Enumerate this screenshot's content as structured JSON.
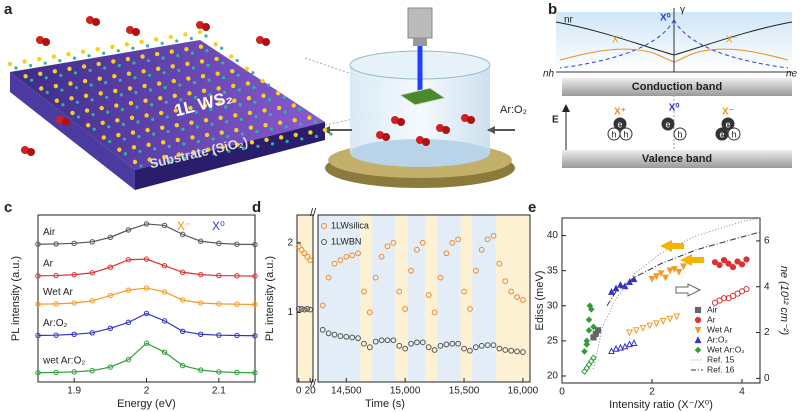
{
  "panel_a": {
    "label": "a",
    "layer": "1L WS₂",
    "substrate": "Substrate (SiO₂)",
    "gas": "Ar:O₂"
  },
  "panel_b": {
    "label": "b",
    "nr": "nr",
    "gamma": "γ",
    "x0_top": "X⁰",
    "xplus_top": "X⁺",
    "xminus_top": "X⁻",
    "nh": "nh",
    "ne": "ne",
    "conduction": "Conduction band",
    "energy": "E",
    "xplus": "X⁺",
    "x0": "X⁰",
    "xminus": "X⁻",
    "valence": "Valence band",
    "particles": [
      [
        "e",
        "h",
        "h"
      ],
      [
        "e",
        "h"
      ],
      [
        "e",
        "e",
        "h"
      ]
    ]
  },
  "chart_data": [
    {
      "type": "line",
      "label": "c",
      "xlabel": "Energy (eV)",
      "ylabel": "PL intensity (a.u.)",
      "xlim": [
        1.85,
        2.15
      ],
      "xticks": [
        1.9,
        2.0,
        2.1
      ],
      "ylim": [
        0,
        5.6
      ],
      "annotations": [
        {
          "text": "X⁻",
          "color": "#f0901e"
        },
        {
          "text": "X⁰",
          "color": "#2d3bd6"
        }
      ],
      "x": [
        1.85,
        1.875,
        1.9,
        1.925,
        1.95,
        1.975,
        2.0,
        2.025,
        2.05,
        2.075,
        2.1,
        2.125,
        2.15
      ],
      "series": [
        {
          "name": "Air",
          "color": "#555555",
          "values": [
            4.62,
            4.63,
            4.65,
            4.7,
            4.85,
            5.1,
            5.3,
            5.25,
            4.95,
            4.72,
            4.65,
            4.62,
            4.61
          ]
        },
        {
          "name": "Ar",
          "color": "#e03030",
          "values": [
            3.56,
            3.57,
            3.6,
            3.66,
            3.85,
            4.1,
            4.12,
            3.9,
            3.68,
            3.6,
            3.57,
            3.56,
            3.55
          ]
        },
        {
          "name": "Wet Ar",
          "color": "#f59a23",
          "values": [
            2.61,
            2.62,
            2.65,
            2.72,
            2.9,
            3.08,
            3.15,
            3.02,
            2.75,
            2.65,
            2.62,
            2.61,
            2.6
          ]
        },
        {
          "name": "Ar:O₂",
          "color": "#3333cc",
          "values": [
            1.56,
            1.57,
            1.6,
            1.65,
            1.8,
            2.0,
            2.3,
            2.05,
            1.7,
            1.6,
            1.57,
            1.56,
            1.55
          ]
        },
        {
          "name": "wet Ar:O₂",
          "color": "#2e9e3a",
          "values": [
            0.31,
            0.32,
            0.34,
            0.38,
            0.5,
            0.75,
            1.3,
            1.0,
            0.55,
            0.4,
            0.34,
            0.32,
            0.31
          ]
        }
      ]
    },
    {
      "type": "scatter",
      "xlim": [
        -3,
        25
      ],
      "xticks": [
        0,
        20
      ],
      "ylabel": "PL intensity (a.u.)",
      "ylim": [
        0,
        2.4
      ],
      "yticks": [
        1,
        2
      ],
      "regions": [
        {
          "from": -3,
          "to": 25,
          "color": "#fdf1d3"
        }
      ],
      "x": [
        0,
        5,
        10,
        15,
        20
      ],
      "series": [
        {
          "name": "1LWsilica",
          "color": "#f08a2c",
          "values": [
            1.95,
            1.9,
            1.85,
            1.8,
            1.75
          ]
        },
        {
          "name": "1LWBN",
          "color": "#555555",
          "values": [
            1.05,
            1.05,
            1.04,
            1.05,
            1.04
          ]
        }
      ]
    },
    {
      "type": "scatter",
      "label": "d",
      "xlabel": "Time (s)",
      "xlim": [
        14260,
        16060
      ],
      "xticks": [
        {
          "value": 14500,
          "label": "14,500"
        },
        {
          "value": 15000,
          "label": "15,000"
        },
        {
          "value": 15500,
          "label": "15,500"
        },
        {
          "value": 16000,
          "label": "16,000"
        }
      ],
      "ylim": [
        0,
        2.4
      ],
      "regions": [
        {
          "from": 14260,
          "to": 14620,
          "color": "#e3edf7"
        },
        {
          "from": 14620,
          "to": 14720,
          "color": "#fdf1d3"
        },
        {
          "from": 14720,
          "to": 14920,
          "color": "#e3edf7"
        },
        {
          "from": 14920,
          "to": 15020,
          "color": "#fdf1d3"
        },
        {
          "from": 15020,
          "to": 15170,
          "color": "#e3edf7"
        },
        {
          "from": 15170,
          "to": 15270,
          "color": "#fdf1d3"
        },
        {
          "from": 15270,
          "to": 15470,
          "color": "#e3edf7"
        },
        {
          "from": 15470,
          "to": 15570,
          "color": "#fdf1d3"
        },
        {
          "from": 15570,
          "to": 15770,
          "color": "#e3edf7"
        },
        {
          "from": 15770,
          "to": 16060,
          "color": "#fdf1d3"
        }
      ],
      "x": [
        14300,
        14350,
        14400,
        14450,
        14500,
        14550,
        14600,
        14650,
        14700,
        14750,
        14800,
        14850,
        14900,
        14950,
        15000,
        15050,
        15100,
        15150,
        15200,
        15250,
        15300,
        15350,
        15400,
        15450,
        15500,
        15550,
        15600,
        15650,
        15700,
        15750,
        15800,
        15850,
        15900,
        15950,
        16000
      ],
      "series": [
        {
          "name": "1LWsilica",
          "color": "#f08a2c",
          "values": [
            1.1,
            1.5,
            1.7,
            1.75,
            1.8,
            1.82,
            1.85,
            1.3,
            1.0,
            1.5,
            1.8,
            1.95,
            2.0,
            1.3,
            1.05,
            1.6,
            1.9,
            2.0,
            1.25,
            1.0,
            1.5,
            1.85,
            2.0,
            2.05,
            1.3,
            1.05,
            1.6,
            1.9,
            2.05,
            2.1,
            1.7,
            1.45,
            1.3,
            1.22,
            1.18
          ]
        },
        {
          "name": "1LWBN",
          "color": "#555555",
          "values": [
            0.75,
            0.7,
            0.68,
            0.66,
            0.65,
            0.64,
            0.63,
            0.55,
            0.5,
            0.58,
            0.6,
            0.6,
            0.6,
            0.52,
            0.48,
            0.55,
            0.57,
            0.57,
            0.5,
            0.46,
            0.52,
            0.54,
            0.55,
            0.55,
            0.48,
            0.45,
            0.5,
            0.52,
            0.53,
            0.53,
            0.48,
            0.46,
            0.45,
            0.44,
            0.43
          ]
        }
      ]
    },
    {
      "type": "scatter",
      "label": "e",
      "xlabel": "Intensity ratio (X⁻/X⁰)",
      "ylabel": "Ediss (meV)",
      "y2label": "ne (10¹² cm⁻²)",
      "xlim": [
        0,
        4.4
      ],
      "xticks": [
        0,
        2,
        4
      ],
      "ylim": [
        19,
        42.5
      ],
      "yticks": [
        20,
        25,
        30,
        35,
        40
      ],
      "y2lim": [
        -0.2,
        7
      ],
      "y2ticks": [
        0,
        2,
        4,
        6
      ],
      "series": [
        {
          "name": "Air",
          "color": "#666666",
          "marker": "square",
          "x": [
            0.7,
            0.75,
            0.8
          ],
          "values": [
            25.5,
            26,
            26.5
          ]
        },
        {
          "name": "Ar",
          "color": "#e03030",
          "marker": "circle",
          "x": [
            3.4,
            3.5,
            3.6,
            3.7,
            3.8,
            3.9,
            4.0,
            4.1
          ],
          "values": [
            36.2,
            35.8,
            36.5,
            36.0,
            35.5,
            36.3,
            35.9,
            36.6
          ],
          "ne_x": [
            3.4,
            3.5,
            3.6,
            3.7,
            3.8,
            3.9,
            4.0,
            4.1
          ],
          "ne_values": [
            3.3,
            3.4,
            3.5,
            3.5,
            3.6,
            3.7,
            3.8,
            3.9
          ]
        },
        {
          "name": "Wet Ar",
          "color": "#f59a23",
          "marker": "triangle-down",
          "x": [
            2.0,
            2.1,
            2.2,
            2.3,
            2.4,
            2.5,
            2.6,
            2.7
          ],
          "values": [
            33.8,
            34.2,
            34.6,
            34.0,
            35.0,
            35.2,
            34.8,
            35.6
          ],
          "ne_x": [
            1.5,
            1.65,
            1.8,
            1.95,
            2.1,
            2.25,
            2.4,
            2.55
          ],
          "ne_values": [
            2.0,
            2.1,
            2.2,
            2.3,
            2.4,
            2.5,
            2.6,
            2.7
          ]
        },
        {
          "name": "Ar:O₂",
          "color": "#3333cc",
          "marker": "triangle",
          "x": [
            1.1,
            1.2,
            1.3,
            1.4,
            1.5,
            1.6
          ],
          "values": [
            32.0,
            32.5,
            33.0,
            32.8,
            33.4,
            33.8
          ],
          "ne_x": [
            1.1,
            1.2,
            1.3,
            1.4,
            1.5,
            1.6
          ],
          "ne_values": [
            1.2,
            1.3,
            1.35,
            1.4,
            1.5,
            1.55
          ]
        },
        {
          "name": "Wet Ar:O₂",
          "color": "#2e9e3a",
          "marker": "diamond",
          "x": [
            0.5,
            0.55,
            0.6,
            0.6,
            0.65,
            0.7,
            0.55,
            0.62
          ],
          "values": [
            23.5,
            25,
            26.5,
            28,
            29.5,
            27,
            24.5,
            30.0
          ],
          "ne_x": [
            0.5,
            0.55,
            0.6,
            0.65,
            0.7
          ],
          "ne_values": [
            0.3,
            0.45,
            0.6,
            0.75,
            0.9
          ]
        },
        {
          "name": "Ref. 15",
          "color": "#888888",
          "marker": "dotted",
          "x": [
            0.7,
            0.9,
            1.2,
            1.6,
            2.2,
            3.0,
            4.0,
            4.4
          ],
          "values": [
            21,
            27,
            31,
            34.5,
            37.5,
            40,
            42,
            42.5
          ]
        },
        {
          "name": "Ref. 16",
          "color": "#333333",
          "marker": "dashdot",
          "x": [
            1.0,
            1.2,
            1.6,
            2.2,
            3.0,
            4.0,
            4.4
          ],
          "values": [
            30,
            32,
            34,
            36,
            38,
            39.8,
            40.5
          ]
        }
      ]
    }
  ]
}
